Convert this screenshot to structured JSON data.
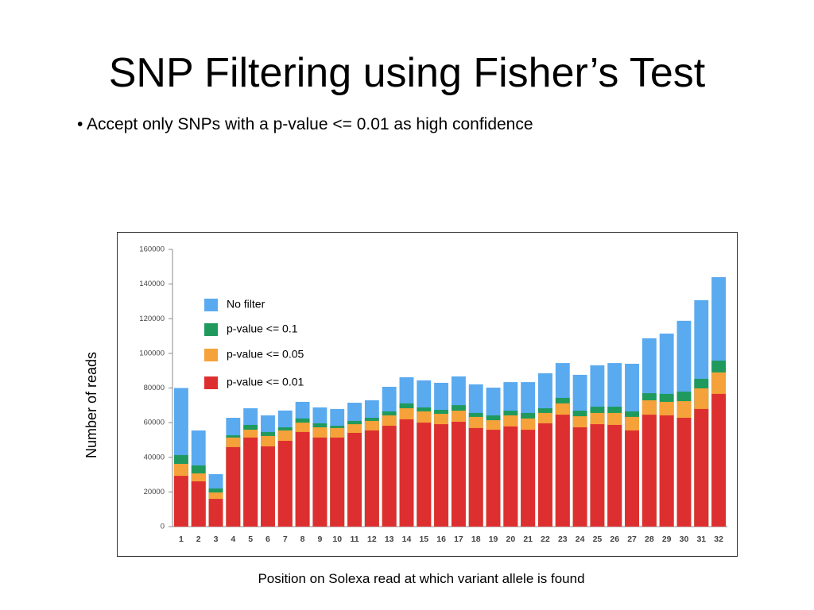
{
  "title": "SNP Filtering using Fisher’s Test",
  "bullet": "Accept only SNPs with a p-value <= 0.01 as high confidence",
  "chart_data": {
    "type": "bar",
    "bar_mode": "overlay",
    "y_label": "Number of reads",
    "x_label": "Position on Solexa read at which variant allele is found",
    "categories": [
      "1",
      "2",
      "3",
      "4",
      "5",
      "6",
      "7",
      "8",
      "9",
      "10",
      "11",
      "12",
      "13",
      "14",
      "15",
      "16",
      "17",
      "18",
      "19",
      "20",
      "21",
      "22",
      "23",
      "24",
      "25",
      "26",
      "27",
      "28",
      "29",
      "30",
      "31",
      "32"
    ],
    "series": [
      {
        "name": "No filter",
        "color": "#5aaaf0",
        "values": [
          80000,
          55500,
          30300,
          62800,
          68300,
          64200,
          67000,
          72000,
          68800,
          67900,
          71500,
          72900,
          80700,
          86200,
          84400,
          83000,
          86700,
          82100,
          80200,
          83400,
          83400,
          88500,
          94400,
          87600,
          93100,
          94400,
          94000,
          108700,
          111400,
          118800,
          130700,
          144000
        ]
      },
      {
        "name": "p-value <= 0.1",
        "color": "#1f9a5c",
        "values": [
          41300,
          35300,
          22000,
          52700,
          58700,
          54600,
          57300,
          62400,
          59600,
          58200,
          61000,
          62800,
          66500,
          71100,
          68800,
          67400,
          70100,
          65600,
          64200,
          66900,
          65600,
          68300,
          74300,
          66900,
          69200,
          69200,
          66500,
          77000,
          76600,
          77900,
          85300,
          95800
        ]
      },
      {
        "name": "p-value <= 0.05",
        "color": "#f6a23a",
        "values": [
          36200,
          30700,
          19700,
          51400,
          55900,
          52300,
          55500,
          60000,
          57300,
          56900,
          59100,
          61000,
          64200,
          68300,
          66500,
          65100,
          66900,
          63300,
          61400,
          64200,
          62400,
          65600,
          71100,
          63700,
          65600,
          65600,
          63300,
          72900,
          72000,
          72400,
          79800,
          89000
        ]
      },
      {
        "name": "p-value <= 0.01",
        "color": "#de2f30",
        "values": [
          29300,
          26100,
          16000,
          45900,
          51400,
          46300,
          49500,
          54600,
          51400,
          51400,
          54100,
          55500,
          58200,
          61900,
          60000,
          59100,
          60500,
          56900,
          55900,
          57800,
          55900,
          59600,
          64600,
          57300,
          59100,
          58700,
          55500,
          64600,
          64200,
          62800,
          67900,
          76600
        ]
      }
    ],
    "ylim": [
      0,
      160000
    ],
    "yticks": [
      0,
      20000,
      40000,
      60000,
      80000,
      100000,
      120000,
      140000,
      160000
    ]
  }
}
